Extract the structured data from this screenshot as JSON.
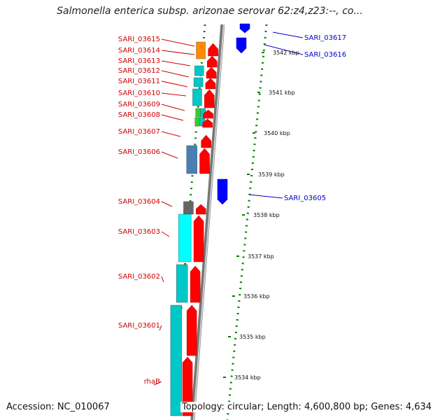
{
  "title": "Salmonella enterica subsp. arizonae serovar 62:z4,z23:--, co...",
  "footer": {
    "accession": "Accession: NC_010067",
    "topology": "Topology: circular; Length: 4,600,800 bp; Genes: 4,634"
  },
  "colors": {
    "forward_gene": "#ff0000",
    "reverse_gene": "#0000ff",
    "label_left": "#d00000",
    "label_right": "#0000cc",
    "tick": "#008000",
    "backbone": "#888888"
  },
  "right_genes": [
    {
      "label": "SARI_03617"
    },
    {
      "label": "SARI_03616"
    },
    {
      "label": "SARI_03605"
    }
  ],
  "left_genes": [
    {
      "label": "SARI_03615"
    },
    {
      "label": "SARI_03614"
    },
    {
      "label": "SARI_03613"
    },
    {
      "label": "SARI_03612"
    },
    {
      "label": "SARI_03611"
    },
    {
      "label": "SARI_03610"
    },
    {
      "label": "SARI_03609"
    },
    {
      "label": "SARI_03608"
    },
    {
      "label": "SARI_03607"
    },
    {
      "label": "SARI_03606"
    },
    {
      "label": "SARI_03604"
    },
    {
      "label": "SARI_03603"
    },
    {
      "label": "SARI_03602"
    },
    {
      "label": "SARI_03601"
    },
    {
      "label": "rhaB"
    }
  ],
  "kbp_ticks": [
    {
      "label": "3542 kbp"
    },
    {
      "label": "3541 kbp"
    },
    {
      "label": "3540 kbp"
    },
    {
      "label": "3539 kbp"
    },
    {
      "label": "3538 kbp"
    },
    {
      "label": "3537 kbp"
    },
    {
      "label": "3536 kbp"
    },
    {
      "label": "3535 kbp"
    },
    {
      "label": "3534 kbp"
    }
  ]
}
